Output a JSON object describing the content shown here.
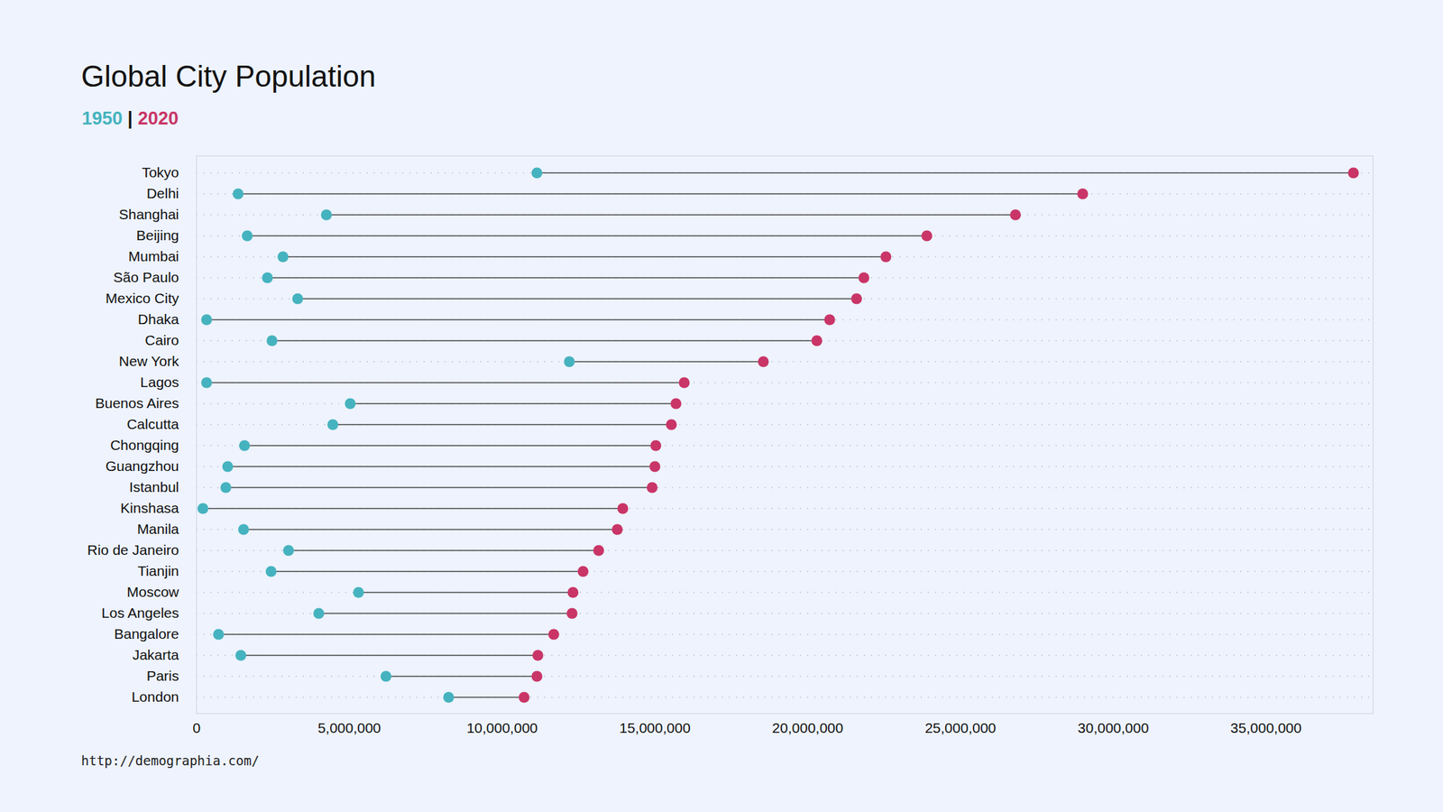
{
  "chart_data": {
    "type": "dumbbell",
    "title": "Global City Population",
    "source": "http://demographia.com/",
    "legend_separator": "|",
    "orientation": "horizontal",
    "grid": true,
    "categories": [
      "Tokyo",
      "Delhi",
      "Shanghai",
      "Beijing",
      "Mumbai",
      "São Paulo",
      "Mexico City",
      "Dhaka",
      "Cairo",
      "New York",
      "Lagos",
      "Buenos Aires",
      "Calcutta",
      "Chongqing",
      "Guangzhou",
      "Istanbul",
      "Kinshasa",
      "Manila",
      "Rio de Janeiro",
      "Tianjin",
      "Moscow",
      "Los Angeles",
      "Bangalore",
      "Jakarta",
      "Paris",
      "London"
    ],
    "series": [
      {
        "name": "1950",
        "color": "#45b3bf",
        "values": [
          11140000,
          1360000,
          4250000,
          1660000,
          2830000,
          2320000,
          3310000,
          330000,
          2470000,
          12200000,
          330000,
          5030000,
          4460000,
          1570000,
          1020000,
          960000,
          210000,
          1540000,
          3010000,
          2440000,
          5300000,
          4000000,
          720000,
          1450000,
          6200000,
          8250000
        ]
      },
      {
        "name": "2020",
        "color": "#c93567",
        "values": [
          37860000,
          29000000,
          26800000,
          23900000,
          22560000,
          21840000,
          21600000,
          20720000,
          20300000,
          18550000,
          15960000,
          15690000,
          15540000,
          15030000,
          15000000,
          14910000,
          13950000,
          13770000,
          13160000,
          12650000,
          12320000,
          12290000,
          11690000,
          11170000,
          11140000,
          10720000
        ]
      }
    ],
    "xlim": [
      0,
      38500000
    ],
    "xticks": [
      0,
      {
        "value": 5000000,
        "label": "5,000,000"
      },
      {
        "value": 10000000,
        "label": "10,000,000"
      },
      {
        "value": 15000000,
        "label": "15,000,000"
      },
      {
        "value": 20000000,
        "label": "20,000,000"
      },
      {
        "value": 25000000,
        "label": "25,000,000"
      },
      {
        "value": 30000000,
        "label": "30,000,000"
      },
      {
        "value": 35000000,
        "label": "35,000,000"
      }
    ]
  }
}
